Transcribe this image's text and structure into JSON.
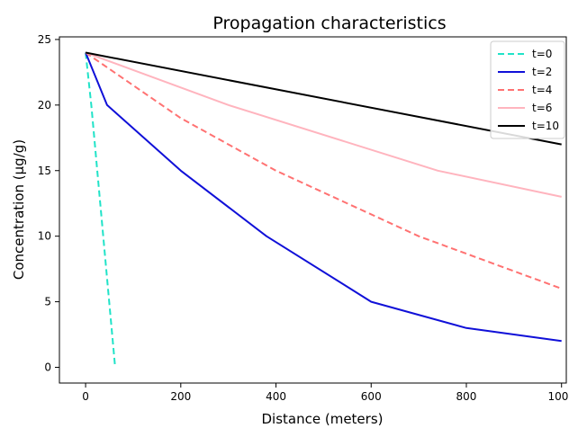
{
  "chart_data": {
    "type": "line",
    "title": "Propagation characteristics",
    "xlabel": "Distance (meters)",
    "ylabel": "Concentration (μg/g)",
    "xlim": [
      -55,
      1010
    ],
    "ylim": [
      -1.2,
      25.2
    ],
    "xticks": [
      0,
      200,
      400,
      600,
      800,
      1000
    ],
    "yticks": [
      0,
      5,
      10,
      15,
      20,
      25
    ],
    "grid": false,
    "legend_position": "top-right",
    "series": [
      {
        "name": "t=0",
        "color": "#20e3c8",
        "dash": "dashed",
        "x": [
          0,
          12,
          22,
          32,
          42,
          52,
          62
        ],
        "y": [
          24,
          20,
          16,
          12,
          8,
          4,
          0
        ]
      },
      {
        "name": "t=2",
        "color": "#1010d8",
        "dash": "solid",
        "x": [
          0,
          45,
          200,
          380,
          600,
          800,
          1000
        ],
        "y": [
          24,
          20,
          15,
          10,
          5,
          3,
          2
        ]
      },
      {
        "name": "t=4",
        "color": "#ff7272",
        "dash": "dashed",
        "x": [
          0,
          200,
          400,
          700,
          1000
        ],
        "y": [
          24,
          19,
          15,
          10,
          6
        ]
      },
      {
        "name": "t=6",
        "color": "#ffb4be",
        "dash": "solid",
        "x": [
          0,
          300,
          740,
          1000
        ],
        "y": [
          24,
          20,
          15,
          13
        ]
      },
      {
        "name": "t=10",
        "color": "#000000",
        "dash": "solid",
        "x": [
          0,
          1000
        ],
        "y": [
          24,
          17
        ]
      }
    ]
  }
}
